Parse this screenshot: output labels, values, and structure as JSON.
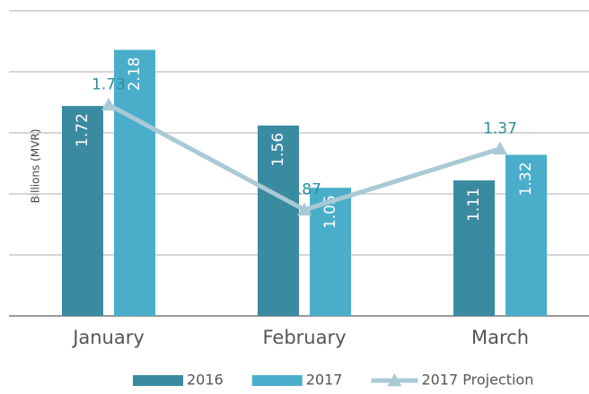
{
  "chart_data": {
    "type": "bar",
    "y_label": "Billions (MVR)",
    "categories": [
      "January",
      "February",
      "March"
    ],
    "series": [
      {
        "name": "2016",
        "color": "#3a8aa1",
        "values": [
          1.72,
          1.56,
          1.11
        ]
      },
      {
        "name": "2017",
        "color": "#4aaecb",
        "values": [
          2.18,
          1.05,
          1.32
        ]
      },
      {
        "name": "2017 Projection",
        "type": "line",
        "color": "#a9c9d5",
        "values": [
          1.73,
          0.87,
          1.37
        ]
      }
    ],
    "ylim": [
      0,
      2.5
    ],
    "yticks": [
      0,
      0.5,
      1,
      1.5,
      2,
      2.5
    ],
    "grid": true,
    "legend": "bottom"
  }
}
